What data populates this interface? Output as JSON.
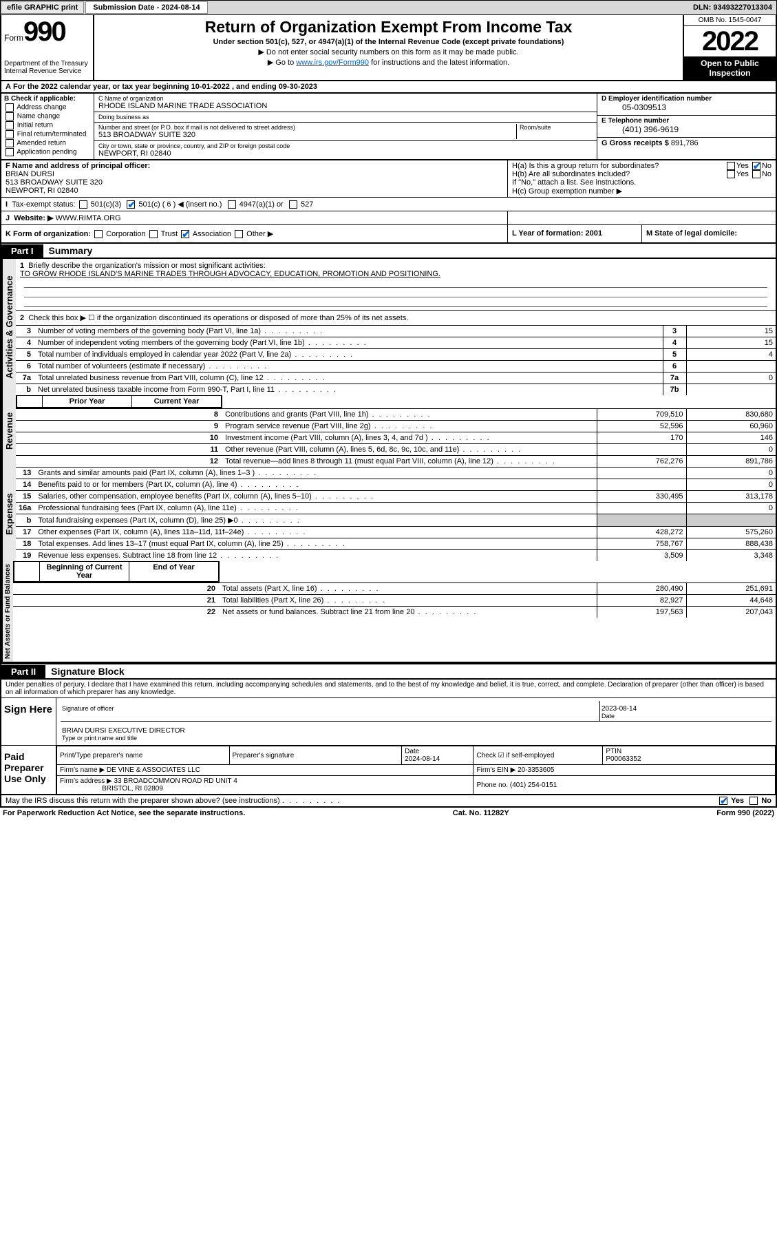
{
  "topbar": {
    "efile": "efile GRAPHIC print",
    "submission_label": "Submission Date - 2024-08-14",
    "dln": "DLN: 93493227013304"
  },
  "header": {
    "form_word": "Form",
    "form_num": "990",
    "dept": "Department of the Treasury",
    "irs": "Internal Revenue Service",
    "title": "Return of Organization Exempt From Income Tax",
    "sub": "Under section 501(c), 527, or 4947(a)(1) of the Internal Revenue Code (except private foundations)",
    "note1": "Do not enter social security numbers on this form as it may be made public.",
    "note2_pre": "Go to ",
    "note2_link": "www.irs.gov/Form990",
    "note2_post": " for instructions and the latest information.",
    "omb": "OMB No. 1545-0047",
    "year": "2022",
    "inspect1": "Open to Public",
    "inspect2": "Inspection"
  },
  "rowA": "For the 2022 calendar year, or tax year beginning 10-01-2022    , and ending 09-30-2023",
  "colB": {
    "hdr": "B Check if applicable:",
    "items": [
      "Address change",
      "Name change",
      "Initial return",
      "Final return/terminated",
      "Amended return",
      "Application pending"
    ]
  },
  "colC": {
    "name_lbl": "C Name of organization",
    "name": "RHODE ISLAND MARINE TRADE ASSOCIATION",
    "dba_lbl": "Doing business as",
    "dba": "",
    "street_lbl": "Number and street (or P.O. box if mail is not delivered to street address)",
    "street": "513 BROADWAY SUITE 320",
    "suite_lbl": "Room/suite",
    "suite": "",
    "city_lbl": "City or town, state or province, country, and ZIP or foreign postal code",
    "city": "NEWPORT, RI  02840"
  },
  "colD": {
    "lbl": "D Employer identification number",
    "val": "05-0309513"
  },
  "colE": {
    "lbl": "E Telephone number",
    "val": "(401) 396-9619"
  },
  "colG": {
    "lbl": "G Gross receipts $",
    "val": "891,786"
  },
  "colF": {
    "lbl": "F  Name and address of principal officer:",
    "name": "BRIAN DURSI",
    "addr1": "513 BROADWAY SUITE 320",
    "addr2": "NEWPORT, RI  02840"
  },
  "colH": {
    "ha": "H(a)  Is this a group return for subordinates?",
    "hb": "H(b)  Are all subordinates included?",
    "hb_note": "If \"No,\" attach a list. See instructions.",
    "hc": "H(c)  Group exemption number ▶",
    "yes": "Yes",
    "no": "No"
  },
  "rowI": {
    "lbl": "Tax-exempt status:",
    "c3": "501(c)(3)",
    "c": "501(c) ( 6 ) ◀ (insert no.)",
    "c4947": "4947(a)(1) or",
    "c527": "527"
  },
  "rowJ": {
    "lbl": "Website: ▶",
    "val": "WWW.RIMTA.ORG"
  },
  "rowK": {
    "lbl": "K Form of organization:",
    "corp": "Corporation",
    "trust": "Trust",
    "assoc": "Association",
    "other": "Other ▶",
    "L": "L Year of formation: 2001",
    "M": "M State of legal domicile:"
  },
  "partI": {
    "tab": "Part I",
    "title": "Summary"
  },
  "summary": {
    "l1_lbl": "Briefly describe the organization's mission or most significant activities:",
    "l1_val": "TO GROW RHODE ISLAND'S MARINE TRADES THROUGH ADVOCACY, EDUCATION, PROMOTION AND POSITIONING.",
    "l2": "Check this box ▶ ☐  if the organization discontinued its operations or disposed of more than 25% of its net assets.",
    "side_ag": "Activities & Governance",
    "side_rev": "Revenue",
    "side_exp": "Expenses",
    "side_na": "Net Assets or Fund Balances",
    "rows_ag": [
      {
        "n": "3",
        "t": "Number of voting members of the governing body (Part VI, line 1a)",
        "box": "3",
        "v": "15"
      },
      {
        "n": "4",
        "t": "Number of independent voting members of the governing body (Part VI, line 1b)",
        "box": "4",
        "v": "15"
      },
      {
        "n": "5",
        "t": "Total number of individuals employed in calendar year 2022 (Part V, line 2a)",
        "box": "5",
        "v": "4"
      },
      {
        "n": "6",
        "t": "Total number of volunteers (estimate if necessary)",
        "box": "6",
        "v": ""
      },
      {
        "n": "7a",
        "t": "Total unrelated business revenue from Part VIII, column (C), line 12",
        "box": "7a",
        "v": "0"
      },
      {
        "n": "b",
        "t": "Net unrelated business taxable income from Form 990-T, Part I, line 11",
        "box": "7b",
        "v": ""
      }
    ],
    "col_hdrs": {
      "prior": "Prior Year",
      "current": "Current Year"
    },
    "rows_rev": [
      {
        "n": "8",
        "t": "Contributions and grants (Part VIII, line 1h)",
        "p": "709,510",
        "c": "830,680"
      },
      {
        "n": "9",
        "t": "Program service revenue (Part VIII, line 2g)",
        "p": "52,596",
        "c": "60,960"
      },
      {
        "n": "10",
        "t": "Investment income (Part VIII, column (A), lines 3, 4, and 7d )",
        "p": "170",
        "c": "146"
      },
      {
        "n": "11",
        "t": "Other revenue (Part VIII, column (A), lines 5, 6d, 8c, 9c, 10c, and 11e)",
        "p": "",
        "c": "0"
      },
      {
        "n": "12",
        "t": "Total revenue—add lines 8 through 11 (must equal Part VIII, column (A), line 12)",
        "p": "762,276",
        "c": "891,786"
      }
    ],
    "rows_exp": [
      {
        "n": "13",
        "t": "Grants and similar amounts paid (Part IX, column (A), lines 1–3 )",
        "p": "",
        "c": "0"
      },
      {
        "n": "14",
        "t": "Benefits paid to or for members (Part IX, column (A), line 4)",
        "p": "",
        "c": "0"
      },
      {
        "n": "15",
        "t": "Salaries, other compensation, employee benefits (Part IX, column (A), lines 5–10)",
        "p": "330,495",
        "c": "313,178"
      },
      {
        "n": "16a",
        "t": "Professional fundraising fees (Part IX, column (A), line 11e)",
        "p": "",
        "c": "0"
      },
      {
        "n": "b",
        "t": "Total fundraising expenses (Part IX, column (D), line 25) ▶0",
        "p": "—shade—",
        "c": "—shade—"
      },
      {
        "n": "17",
        "t": "Other expenses (Part IX, column (A), lines 11a–11d, 11f–24e)",
        "p": "428,272",
        "c": "575,260"
      },
      {
        "n": "18",
        "t": "Total expenses. Add lines 13–17 (must equal Part IX, column (A), line 25)",
        "p": "758,767",
        "c": "888,438"
      },
      {
        "n": "19",
        "t": "Revenue less expenses. Subtract line 18 from line 12",
        "p": "3,509",
        "c": "3,348"
      }
    ],
    "col_hdrs2": {
      "beg": "Beginning of Current Year",
      "end": "End of Year"
    },
    "rows_na": [
      {
        "n": "20",
        "t": "Total assets (Part X, line 16)",
        "p": "280,490",
        "c": "251,691"
      },
      {
        "n": "21",
        "t": "Total liabilities (Part X, line 26)",
        "p": "82,927",
        "c": "44,648"
      },
      {
        "n": "22",
        "t": "Net assets or fund balances. Subtract line 21 from line 20",
        "p": "197,563",
        "c": "207,043"
      }
    ]
  },
  "partII": {
    "tab": "Part II",
    "title": "Signature Block"
  },
  "perjury": "Under penalties of perjury, I declare that I have examined this return, including accompanying schedules and statements, and to the best of my knowledge and belief, it is true, correct, and complete. Declaration of preparer (other than officer) is based on all information of which preparer has any knowledge.",
  "sign": {
    "side": "Sign Here",
    "sig_lbl": "Signature of officer",
    "date_lbl": "Date",
    "date_val": "2023-08-14",
    "name": "BRIAN DURSI EXECUTIVE DIRECTOR",
    "name_lbl": "Type or print name and title"
  },
  "prep": {
    "side": "Paid Preparer Use Only",
    "h1": "Print/Type preparer's name",
    "h2": "Preparer's signature",
    "h3": "Date",
    "h3v": "2024-08-14",
    "h4": "Check ☑ if self-employed",
    "h5": "PTIN",
    "h5v": "P00063352",
    "firm_lbl": "Firm's name    ▶",
    "firm": "DE VINE & ASSOCIATES LLC",
    "ein_lbl": "Firm's EIN ▶",
    "ein": "20-3353605",
    "addr_lbl": "Firm's address ▶",
    "addr1": "33 BROADCOMMON ROAD RD UNIT 4",
    "addr2": "BRISTOL, RI  02809",
    "phone_lbl": "Phone no.",
    "phone": "(401) 254-0151"
  },
  "may": {
    "q": "May the IRS discuss this return with the preparer shown above? (see instructions)",
    "yes": "Yes",
    "no": "No"
  },
  "footer": {
    "l": "For Paperwork Reduction Act Notice, see the separate instructions.",
    "m": "Cat. No. 11282Y",
    "r": "Form 990 (2022)"
  }
}
